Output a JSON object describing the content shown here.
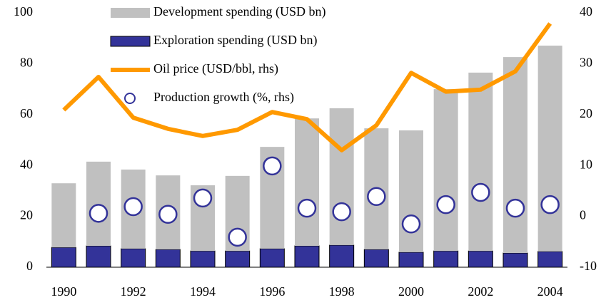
{
  "chart_data": {
    "type": "bar",
    "categories": [
      1990,
      null,
      1992,
      null,
      1994,
      null,
      1996,
      null,
      1998,
      null,
      2000,
      null,
      2002,
      null,
      2004
    ],
    "series": [
      {
        "name": "Exploration spending (USD bn)",
        "type": "bar",
        "color": "#333399",
        "values": [
          7.8,
          8.4,
          7.3,
          7.0,
          6.4,
          6.4,
          7.3,
          8.4,
          8.7,
          7.0,
          5.9,
          6.4,
          6.4,
          5.6,
          6.2
        ]
      },
      {
        "name": "Development spending (USD bn)",
        "type": "bar",
        "color": "#c0c0c0",
        "values": [
          25.2,
          33.1,
          31.1,
          29.1,
          25.8,
          29.5,
          40.0,
          50.1,
          53.8,
          47.6,
          47.9,
          63.6,
          70.1,
          77.0,
          80.9
        ]
      },
      {
        "name": "Oil price (USD/bbl, rhs)",
        "type": "line",
        "axis": "y2",
        "color": "#ff9900",
        "values": [
          20.9,
          27.4,
          19.4,
          17.2,
          15.8,
          17.0,
          20.5,
          19.1,
          13.0,
          17.9,
          28.2,
          24.5,
          24.9,
          28.5,
          37.9
        ]
      },
      {
        "name": "Production growth (%, rhs)",
        "type": "scatter",
        "axis": "y2",
        "color": "#333399",
        "values": [
          null,
          0.6,
          1.9,
          0.4,
          3.6,
          -4.1,
          9.9,
          1.6,
          0.9,
          3.9,
          -1.5,
          2.3,
          4.7,
          1.6,
          2.3
        ]
      }
    ],
    "ylim": [
      0,
      100
    ],
    "yticks": [
      0,
      20,
      40,
      60,
      80,
      100
    ],
    "y2lim": [
      -10,
      40
    ],
    "y2ticks": [
      -10,
      0,
      10,
      20,
      30,
      40
    ],
    "stacked": true,
    "legend": "top"
  }
}
